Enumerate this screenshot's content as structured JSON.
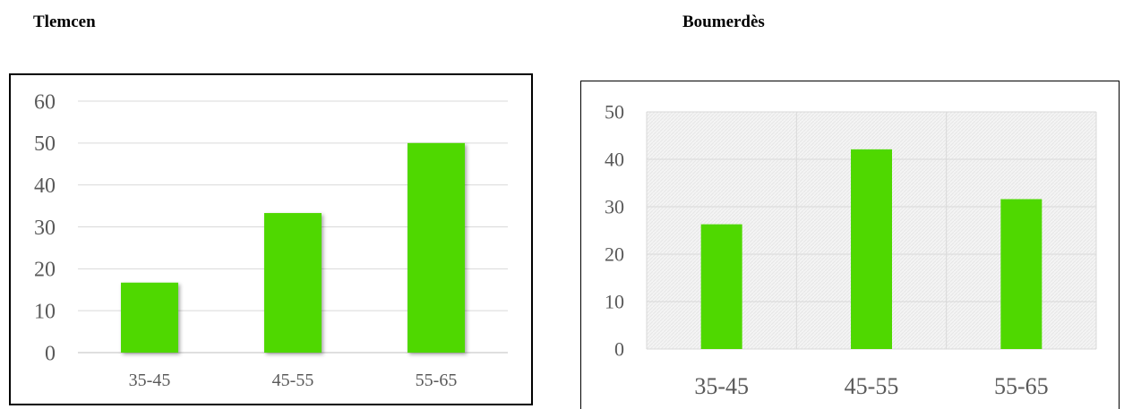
{
  "chart_data": [
    {
      "type": "bar",
      "title": "Tlemcen",
      "categories": [
        "35-45",
        "45-55",
        "55-65"
      ],
      "values": [
        16.7,
        33.3,
        50
      ],
      "ylim": [
        0,
        60
      ],
      "yticks": [
        0,
        10,
        20,
        30,
        40,
        50,
        60
      ],
      "grid": "horizontal",
      "bar_color": "#4fd800"
    },
    {
      "type": "bar",
      "title": "Boumerdès",
      "categories": [
        "35-45",
        "45-55",
        "55-65"
      ],
      "values": [
        26.3,
        42.1,
        31.6
      ],
      "ylim": [
        0,
        50
      ],
      "yticks": [
        0,
        10,
        20,
        30,
        40,
        50
      ],
      "grid": "both",
      "bar_color": "#4fd800"
    }
  ]
}
